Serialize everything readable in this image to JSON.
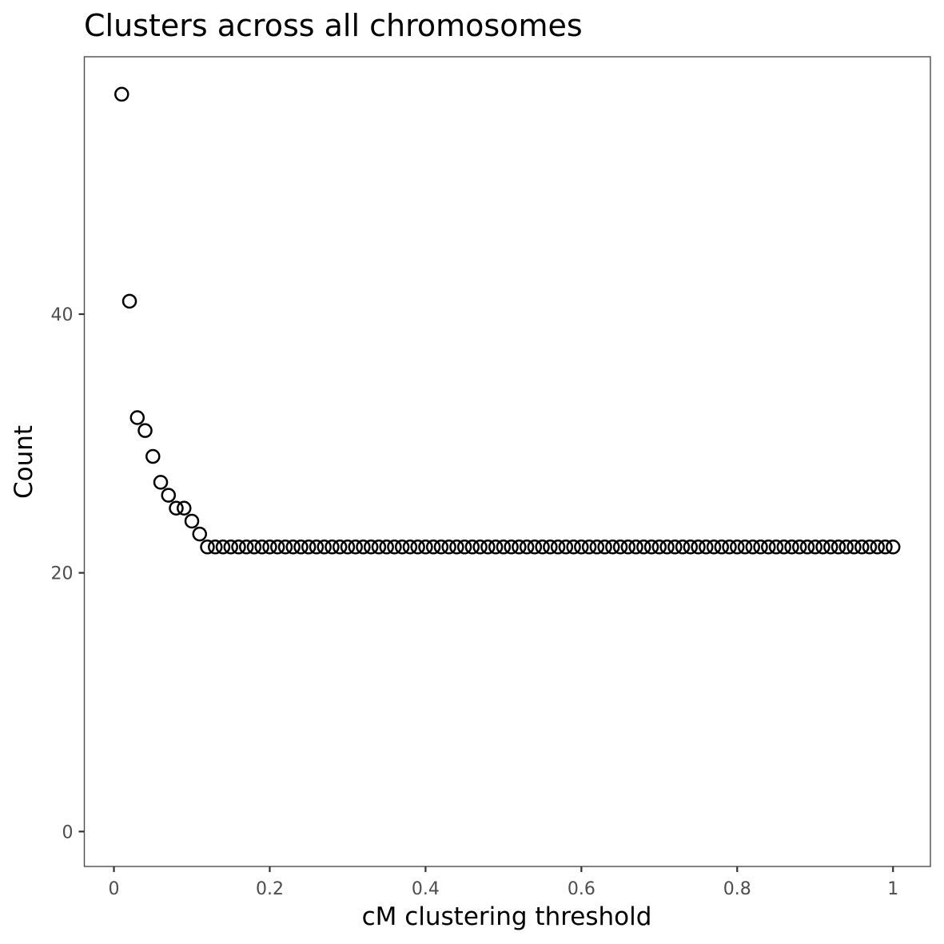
{
  "chart_data": {
    "type": "scatter",
    "title": "Clusters across all chromosomes",
    "xlabel": "cM clustering threshold",
    "ylabel": "Count",
    "xlim": [
      -0.038,
      1.048
    ],
    "ylim": [
      -2.7,
      59.9
    ],
    "x_ticks": [
      {
        "value": 0,
        "label": "0"
      },
      {
        "value": 0.2,
        "label": "0.2"
      },
      {
        "value": 0.4,
        "label": "0.4"
      },
      {
        "value": 0.6,
        "label": "0.6"
      },
      {
        "value": 0.8,
        "label": "0.8"
      },
      {
        "value": 1,
        "label": "1"
      }
    ],
    "y_ticks": [
      {
        "value": 0,
        "label": "0"
      },
      {
        "value": 20,
        "label": "20"
      },
      {
        "value": 40,
        "label": "40"
      }
    ],
    "grid": false,
    "series": [
      {
        "marker": "open-circle",
        "color": "#000000",
        "x_start": 0.01,
        "x_step": 0.01,
        "values": [
          57,
          41,
          32,
          31,
          29,
          27,
          26,
          25,
          25,
          24,
          23,
          22,
          22,
          22,
          22,
          22,
          22,
          22,
          22,
          22,
          22,
          22,
          22,
          22,
          22,
          22,
          22,
          22,
          22,
          22,
          22,
          22,
          22,
          22,
          22,
          22,
          22,
          22,
          22,
          22,
          22,
          22,
          22,
          22,
          22,
          22,
          22,
          22,
          22,
          22,
          22,
          22,
          22,
          22,
          22,
          22,
          22,
          22,
          22,
          22,
          22,
          22,
          22,
          22,
          22,
          22,
          22,
          22,
          22,
          22,
          22,
          22,
          22,
          22,
          22,
          22,
          22,
          22,
          22,
          22,
          22,
          22,
          22,
          22,
          22,
          22,
          22,
          22,
          22,
          22,
          22,
          22,
          22,
          22,
          22,
          22,
          22,
          22,
          22,
          22
        ]
      }
    ]
  }
}
